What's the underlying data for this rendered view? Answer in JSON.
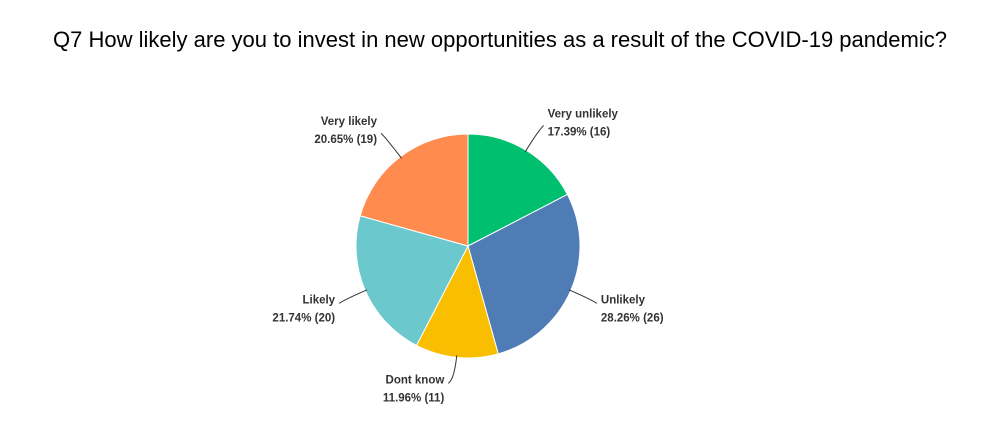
{
  "chart_data": {
    "type": "pie",
    "title": "Q7 How likely are you to invest in new opportunities as a result of the COVID-19 pandemic?",
    "categories": [
      "Very unlikely",
      "Unlikely",
      "Dont know",
      "Likely",
      "Very likely"
    ],
    "values": [
      17.39,
      28.26,
      11.96,
      21.74,
      20.65
    ],
    "value_labels": [
      "17.39% (16)",
      "28.26% (26)",
      "11.96% (11)",
      "21.74% (20)",
      "20.65% (19)"
    ],
    "colors": [
      "#00bf6f",
      "#507cb6",
      "#f9be00",
      "#6bc8cd",
      "#ff8b4f"
    ]
  }
}
